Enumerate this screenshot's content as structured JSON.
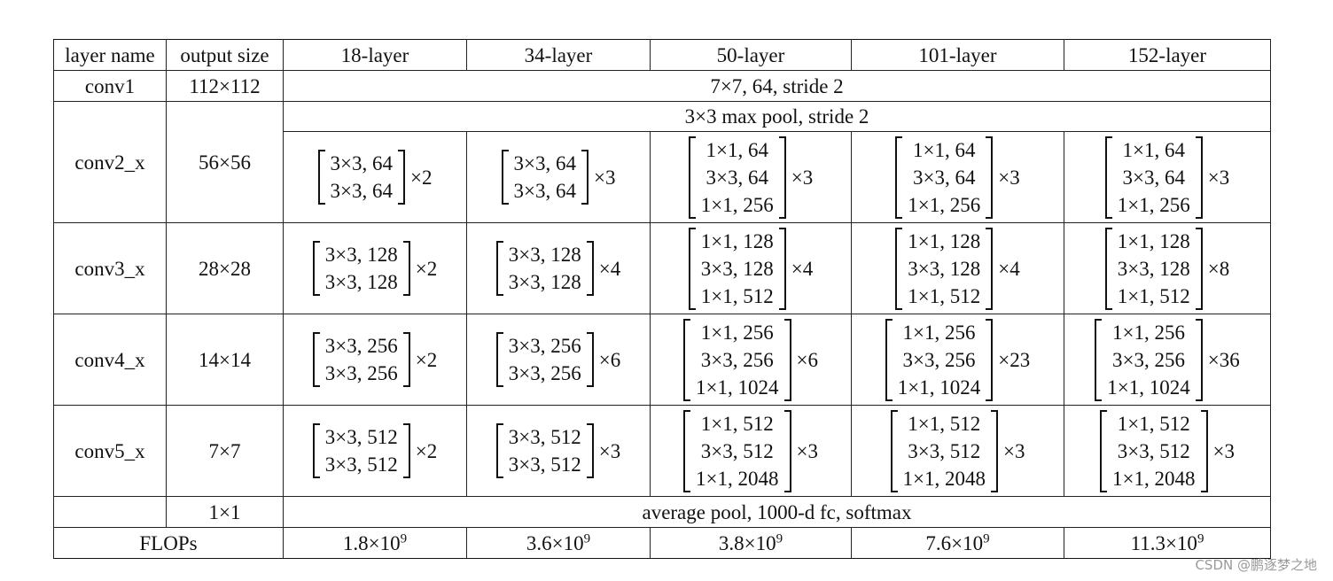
{
  "header": [
    "layer name",
    "output size",
    "18-layer",
    "34-layer",
    "50-layer",
    "101-layer",
    "152-layer"
  ],
  "conv1": {
    "name": "conv1",
    "size": "112×112",
    "spec": "7×7, 64, stride 2"
  },
  "conv2_pool": "3×3 max pool, stride 2",
  "stages": [
    {
      "name": "conv2_x",
      "size": "56×56",
      "blocks": [
        {
          "lines": [
            "3×3, 64",
            "3×3, 64"
          ],
          "mult": "×2"
        },
        {
          "lines": [
            "3×3, 64",
            "3×3, 64"
          ],
          "mult": "×3"
        },
        {
          "lines": [
            "1×1, 64",
            "3×3, 64",
            "1×1, 256"
          ],
          "mult": "×3"
        },
        {
          "lines": [
            "1×1, 64",
            "3×3, 64",
            "1×1, 256"
          ],
          "mult": "×3"
        },
        {
          "lines": [
            "1×1, 64",
            "3×3, 64",
            "1×1, 256"
          ],
          "mult": "×3"
        }
      ]
    },
    {
      "name": "conv3_x",
      "size": "28×28",
      "blocks": [
        {
          "lines": [
            "3×3, 128",
            "3×3, 128"
          ],
          "mult": "×2"
        },
        {
          "lines": [
            "3×3, 128",
            "3×3, 128"
          ],
          "mult": "×4"
        },
        {
          "lines": [
            "1×1, 128",
            "3×3, 128",
            "1×1, 512"
          ],
          "mult": "×4"
        },
        {
          "lines": [
            "1×1, 128",
            "3×3, 128",
            "1×1, 512"
          ],
          "mult": "×4"
        },
        {
          "lines": [
            "1×1, 128",
            "3×3, 128",
            "1×1, 512"
          ],
          "mult": "×8"
        }
      ]
    },
    {
      "name": "conv4_x",
      "size": "14×14",
      "blocks": [
        {
          "lines": [
            "3×3, 256",
            "3×3, 256"
          ],
          "mult": "×2"
        },
        {
          "lines": [
            "3×3, 256",
            "3×3, 256"
          ],
          "mult": "×6"
        },
        {
          "lines": [
            "1×1, 256",
            "3×3, 256",
            "1×1, 1024"
          ],
          "mult": "×6"
        },
        {
          "lines": [
            "1×1, 256",
            "3×3, 256",
            "1×1, 1024"
          ],
          "mult": "×23"
        },
        {
          "lines": [
            "1×1, 256",
            "3×3, 256",
            "1×1, 1024"
          ],
          "mult": "×36"
        }
      ]
    },
    {
      "name": "conv5_x",
      "size": "7×7",
      "blocks": [
        {
          "lines": [
            "3×3, 512",
            "3×3, 512"
          ],
          "mult": "×2"
        },
        {
          "lines": [
            "3×3, 512",
            "3×3, 512"
          ],
          "mult": "×3"
        },
        {
          "lines": [
            "1×1, 512",
            "3×3, 512",
            "1×1, 2048"
          ],
          "mult": "×3"
        },
        {
          "lines": [
            "1×1, 512",
            "3×3, 512",
            "1×1, 2048"
          ],
          "mult": "×3"
        },
        {
          "lines": [
            "1×1, 512",
            "3×3, 512",
            "1×1, 2048"
          ],
          "mult": "×3"
        }
      ]
    }
  ],
  "final": {
    "name": "",
    "size": "1×1",
    "spec": "average pool, 1000-d fc, softmax"
  },
  "flops": {
    "label": "FLOPs",
    "values": [
      {
        "mant": "1.8×10",
        "exp": "9"
      },
      {
        "mant": "3.6×10",
        "exp": "9"
      },
      {
        "mant": "3.8×10",
        "exp": "9"
      },
      {
        "mant": "7.6×10",
        "exp": "9"
      },
      {
        "mant": "11.3×10",
        "exp": "9"
      }
    ]
  },
  "watermark": "CSDN @鹏逐梦之地"
}
